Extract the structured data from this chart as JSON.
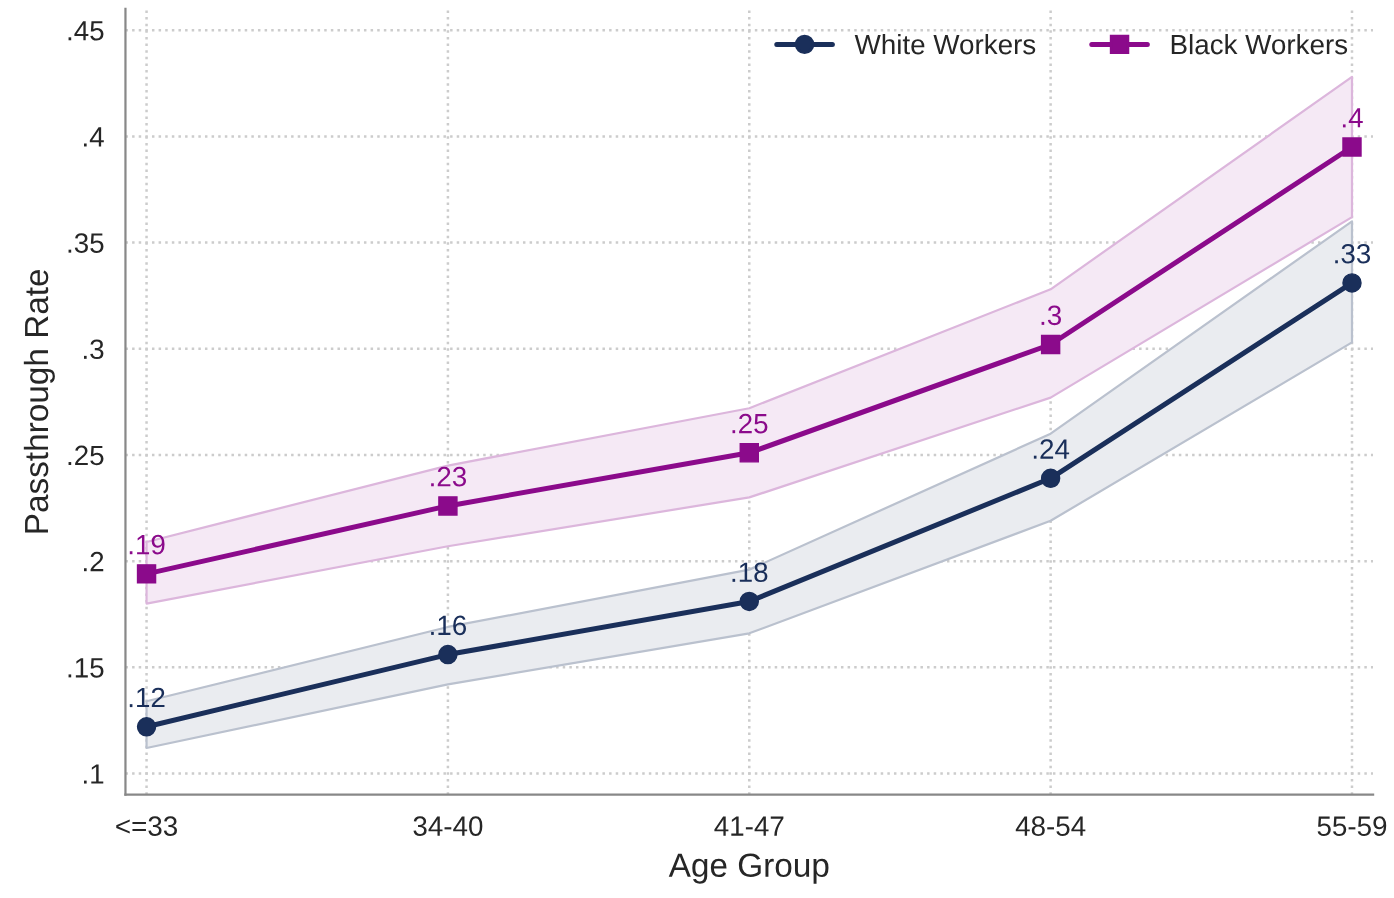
{
  "chart_data": {
    "type": "line",
    "xlabel": "Age Group",
    "ylabel": "Passthrough Rate",
    "categories": [
      "<=33",
      "34-40",
      "41-47",
      "48-54",
      "55-59"
    ],
    "series": [
      {
        "name": "White Workers",
        "color": "#1a2f5a",
        "marker": "circle",
        "values": [
          0.122,
          0.156,
          0.181,
          0.239,
          0.331
        ],
        "lower": [
          0.112,
          0.142,
          0.166,
          0.219,
          0.303
        ],
        "upper": [
          0.134,
          0.169,
          0.196,
          0.26,
          0.36
        ],
        "value_labels": [
          ".12",
          ".16",
          ".18",
          ".24",
          ".33"
        ]
      },
      {
        "name": "Black Workers",
        "color": "#8b0a8b",
        "marker": "square",
        "values": [
          0.194,
          0.226,
          0.251,
          0.302,
          0.395
        ],
        "lower": [
          0.18,
          0.207,
          0.23,
          0.277,
          0.362
        ],
        "upper": [
          0.209,
          0.245,
          0.272,
          0.328,
          0.428
        ],
        "value_labels": [
          ".19",
          ".23",
          ".25",
          ".3",
          ".4"
        ]
      }
    ],
    "ylim": [
      0.09,
      0.46
    ],
    "yticks": [
      {
        "value": 0.1,
        "label": ".1"
      },
      {
        "value": 0.15,
        "label": ".15"
      },
      {
        "value": 0.2,
        "label": ".2"
      },
      {
        "value": 0.25,
        "label": ".25"
      },
      {
        "value": 0.3,
        "label": ".3"
      },
      {
        "value": 0.35,
        "label": ".35"
      },
      {
        "value": 0.4,
        "label": ".4"
      },
      {
        "value": 0.45,
        "label": ".45"
      }
    ],
    "grid": true,
    "legend": "top right",
    "line_style": "solid"
  }
}
